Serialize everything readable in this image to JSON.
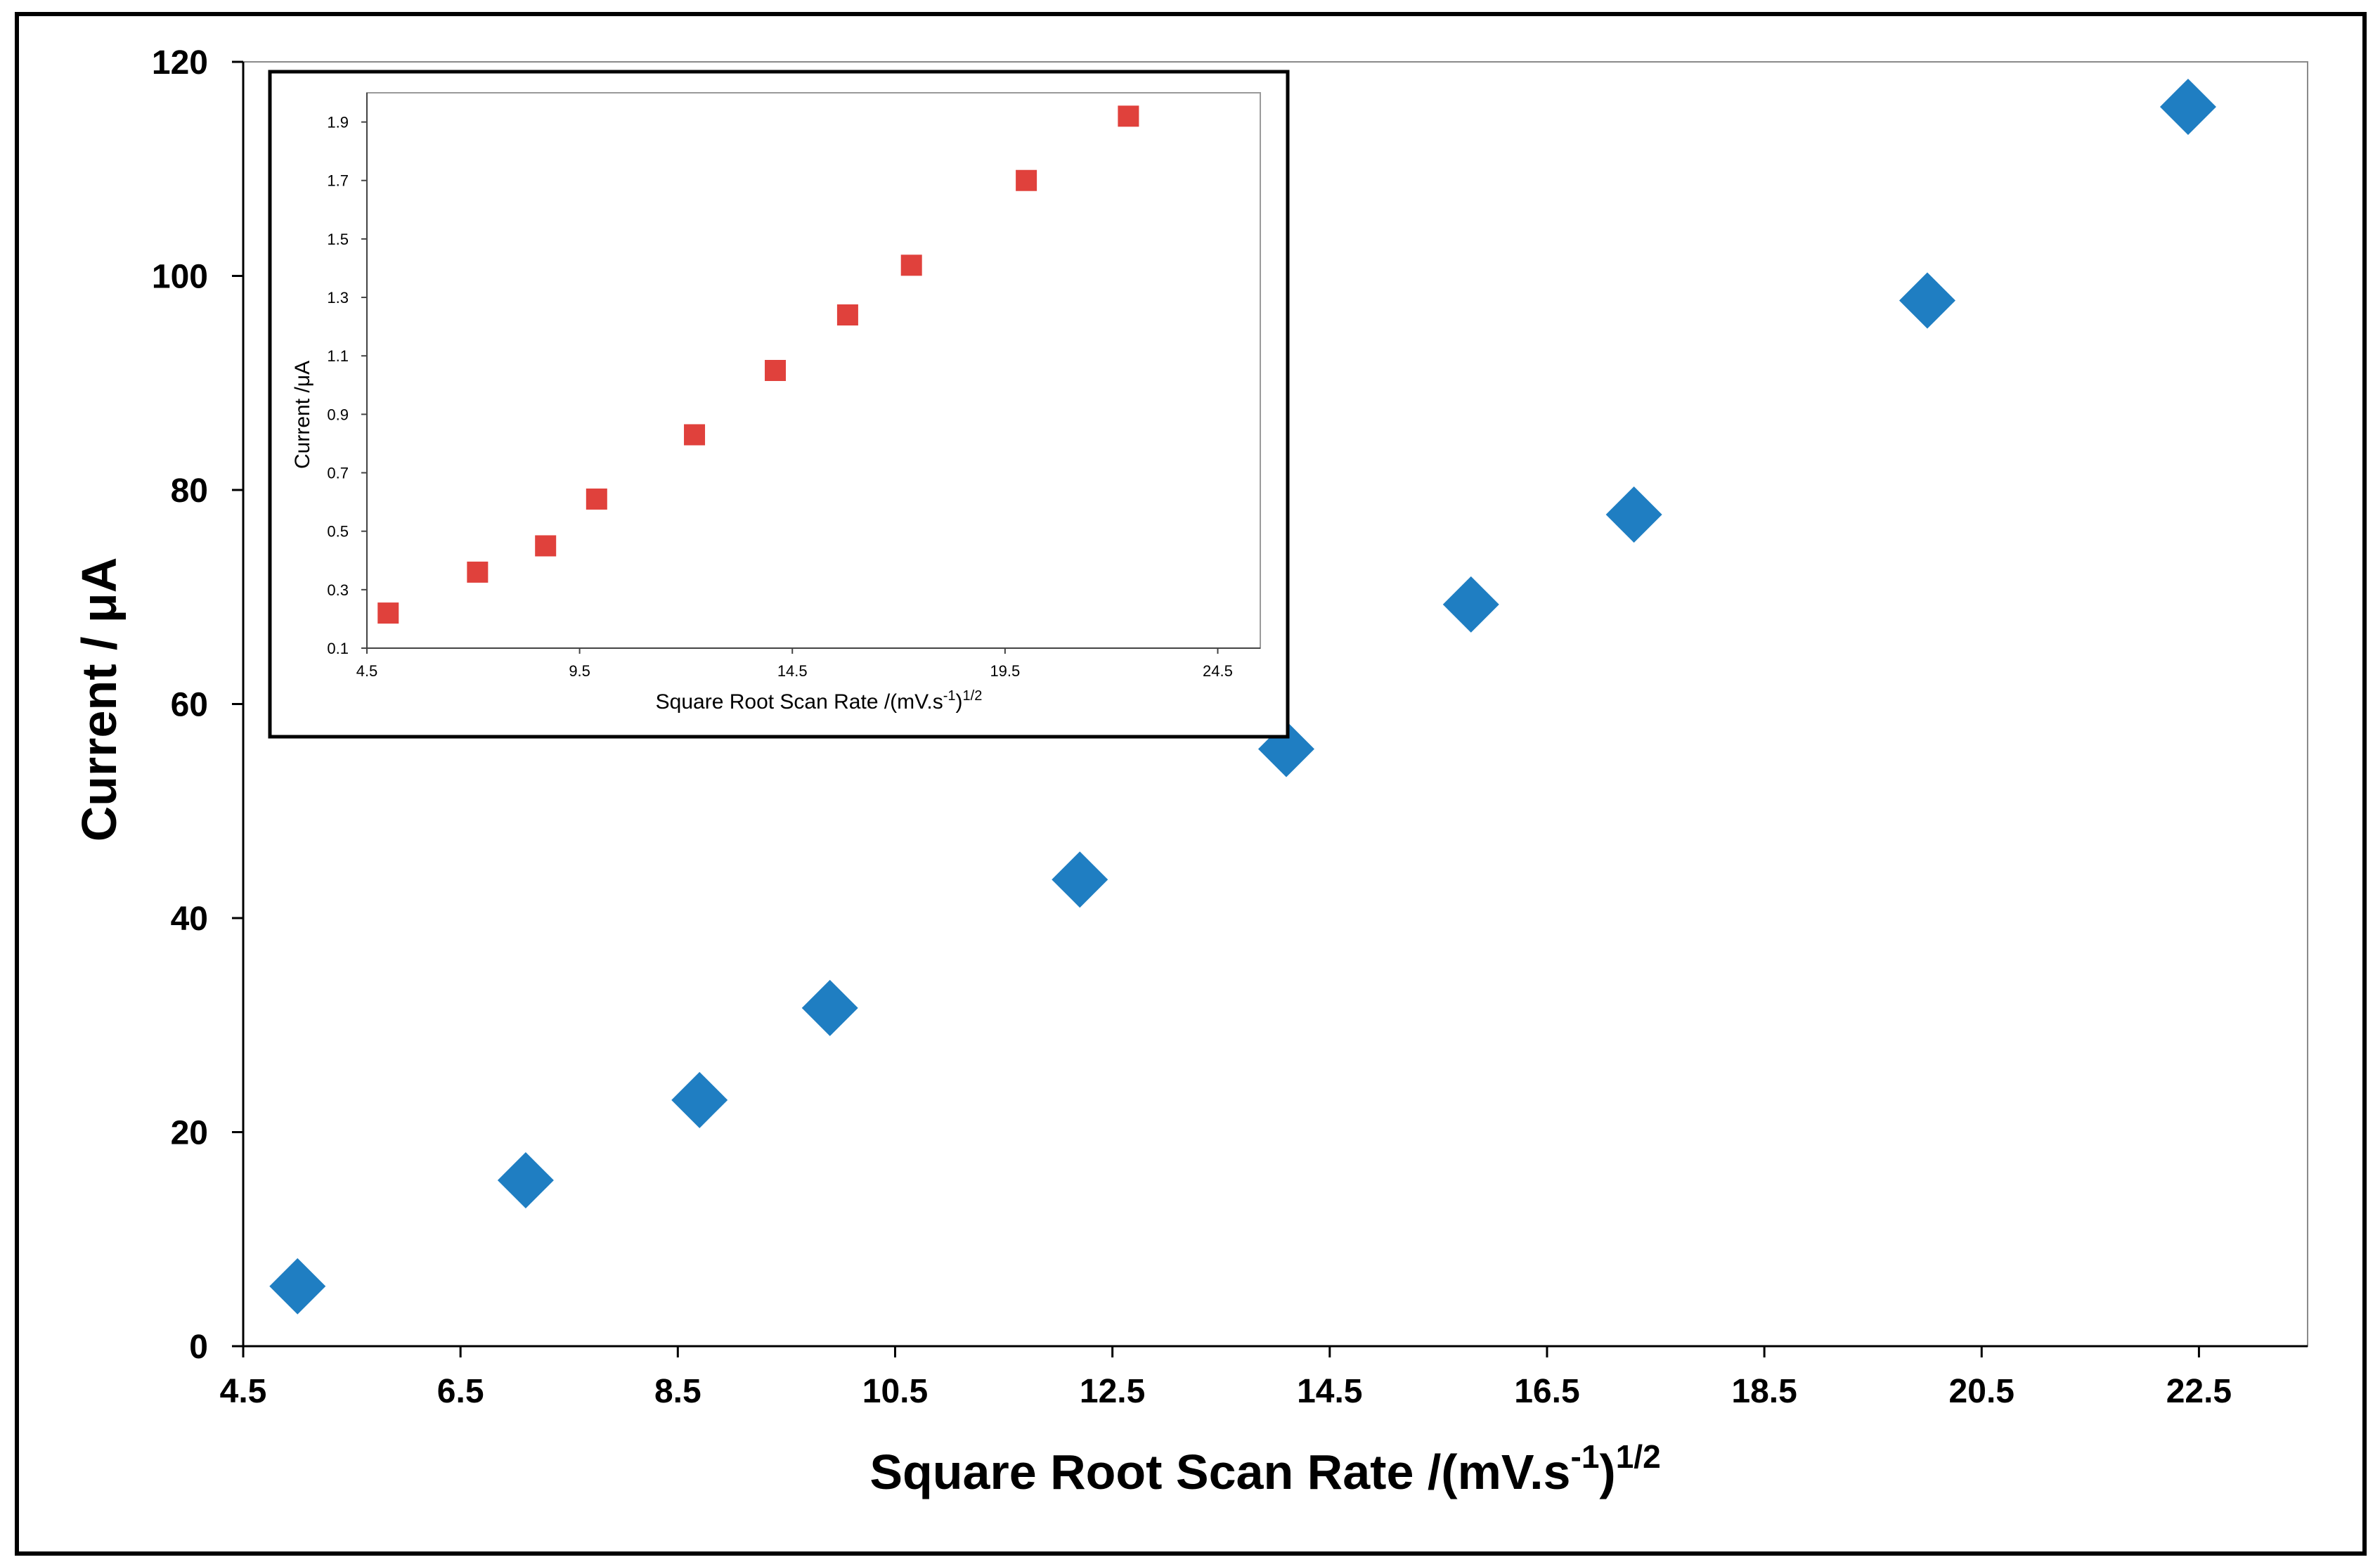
{
  "chart_data": [
    {
      "type": "scatter",
      "title": "",
      "xlabel": "Square Root Scan Rate /(mV.s",
      "xlabel_sup1": "-1",
      "xlabel_close": ")",
      "xlabel_sup2": "1/2",
      "ylabel": "Current / μA",
      "xlim": [
        4.5,
        23.5
      ],
      "ylim": [
        0,
        120
      ],
      "xticks": [
        "4.5",
        "6.5",
        "8.5",
        "10.5",
        "12.5",
        "14.5",
        "16.5",
        "18.5",
        "20.5",
        "22.5"
      ],
      "yticks": [
        "0",
        "20",
        "40",
        "60",
        "80",
        "100",
        "120"
      ],
      "grid": false,
      "marker": "diamond",
      "color": "#1f7ec2",
      "series": [
        {
          "x": [
            5.0,
            7.1,
            8.7,
            9.9,
            12.2,
            14.1,
            15.8,
            17.3,
            20.0,
            22.4
          ],
          "y": [
            5.6,
            15.5,
            23.0,
            31.6,
            43.6,
            55.8,
            69.3,
            77.7,
            97.7,
            115.8
          ]
        }
      ]
    },
    {
      "type": "scatter",
      "title": "",
      "xlabel": "Square Root Scan Rate /(mV.s",
      "xlabel_sup1": "-1",
      "xlabel_close": ")",
      "xlabel_sup2": "1/2",
      "ylabel": "Current /μA",
      "xlim": [
        4.5,
        25.5
      ],
      "ylim": [
        0.1,
        2.0
      ],
      "xticks": [
        "4.5",
        "9.5",
        "14.5",
        "19.5",
        "24.5"
      ],
      "yticks": [
        "0.1",
        "0.3",
        "0.5",
        "0.7",
        "0.9",
        "1.1",
        "1.3",
        "1.5",
        "1.7",
        "1.9"
      ],
      "grid": false,
      "legend": "none",
      "marker": "square",
      "color": "#e0413c",
      "placement": "inset top-left",
      "series": [
        {
          "x": [
            5.0,
            7.1,
            8.7,
            9.9,
            12.2,
            14.1,
            15.8,
            17.3,
            20.0,
            22.4
          ],
          "y": [
            0.22,
            0.36,
            0.45,
            0.61,
            0.83,
            1.05,
            1.24,
            1.41,
            1.7,
            1.92
          ]
        }
      ]
    }
  ]
}
